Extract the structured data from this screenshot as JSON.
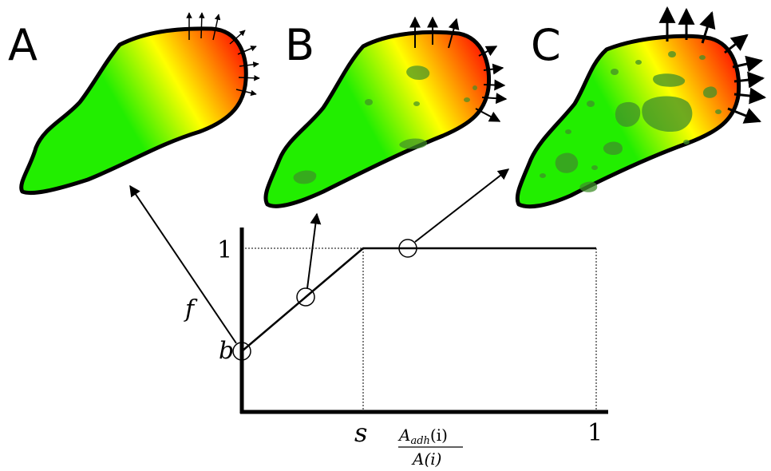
{
  "panels": [
    {
      "letter": "A",
      "adhesion": "none"
    },
    {
      "letter": "B",
      "adhesion": "some"
    },
    {
      "letter": "C",
      "adhesion": "many"
    }
  ],
  "graph": {
    "y_label": "f",
    "y_intercept_label": "b",
    "y_max_label": "1",
    "x_threshold_label": "s",
    "x_max_label": "1",
    "x_numerator": "A",
    "x_numerator_sub": "adh",
    "x_numerator_arg": "(i)",
    "x_denominator": "A(i)"
  },
  "colors": {
    "cell_front": "#ff2a00",
    "cell_mid": "#ffff00",
    "cell_body": "#22ee00",
    "adhesion_patch": "#3f8f2a",
    "outline": "#000000"
  }
}
